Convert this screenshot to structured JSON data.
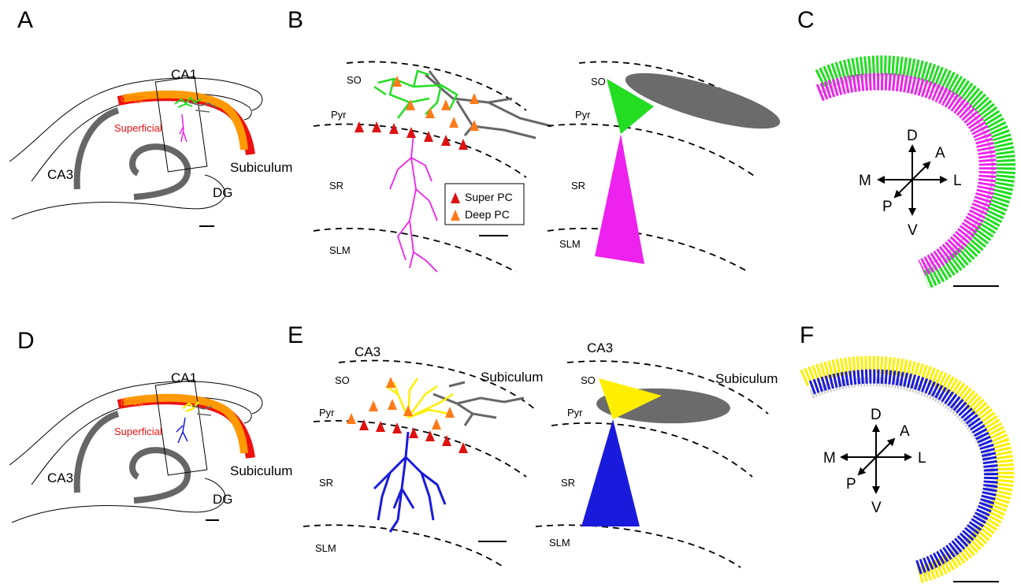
{
  "panels": {
    "A": {
      "label": "A",
      "ca1": "CA1",
      "deep": "deep",
      "superficial": "Superficial",
      "subiculum": "Subiculum",
      "ca3": "CA3",
      "dg": "DG"
    },
    "B": {
      "label": "B",
      "so": "SO",
      "pyr": "Pyr",
      "sr": "SR",
      "slm": "SLM",
      "legend": [
        "Super PC",
        "Deep PC"
      ],
      "so2": "SO",
      "pyr2": "Pyr",
      "sr2": "SR",
      "slm2": "SLM"
    },
    "C": {
      "label": "C",
      "axes": {
        "d": "D",
        "a": "A",
        "m": "M",
        "l": "L",
        "p": "P",
        "v": "V"
      }
    },
    "D": {
      "label": "D",
      "ca1": "CA1",
      "deep": "deep",
      "superficial": "Superficial",
      "subiculum": "Subiculum",
      "ca3": "CA3",
      "dg": "DG"
    },
    "E": {
      "label": "E",
      "ca3": "CA3",
      "subiculum": "Subiculum",
      "so": "SO",
      "pyr": "Pyr",
      "sr": "SR",
      "slm": "SLM",
      "ca3_2": "CA3",
      "subiculum2": "Subiculum",
      "so2": "SO",
      "pyr2": "Pyr",
      "sr2": "SR",
      "slm2": "SLM"
    },
    "F": {
      "label": "F",
      "axes": {
        "d": "D",
        "a": "A",
        "m": "M",
        "l": "L",
        "p": "P",
        "v": "V"
      }
    }
  },
  "colors": {
    "deep_layer": "#ff9900",
    "superficial_layer": "#ee1111",
    "dentate": "#666666",
    "super_pc": "#dd1111",
    "deep_pc": "#ff7a1a",
    "axon_gray": "#666666",
    "green_dendrite": "#22dd22",
    "magenta_dendrite": "#ee22ee",
    "yellow_dendrite": "#ffee00",
    "blue_dendrite": "#1a1add"
  }
}
